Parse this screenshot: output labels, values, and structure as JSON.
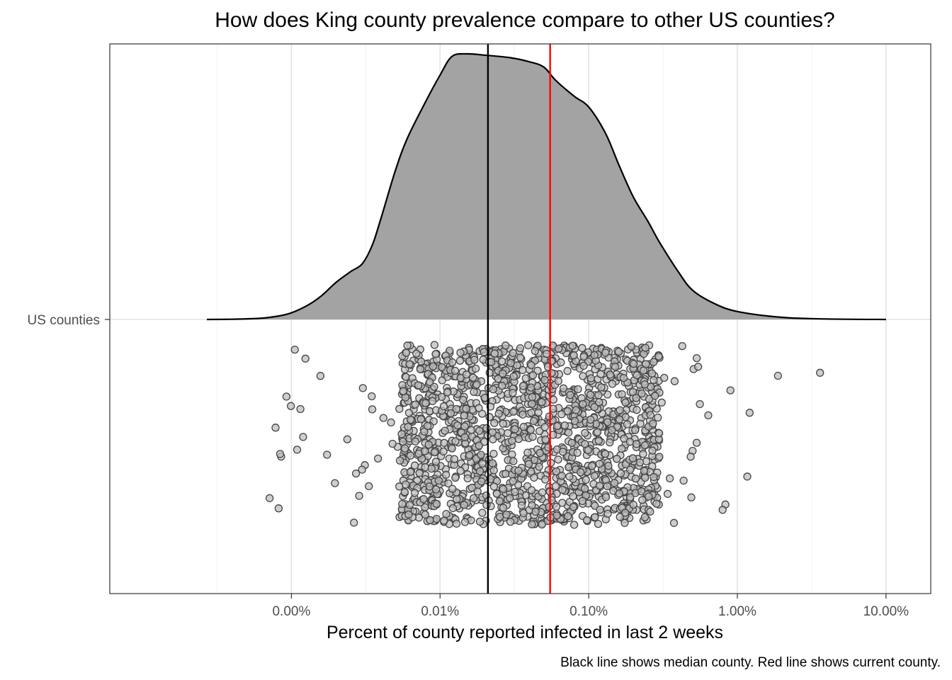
{
  "chart_data": {
    "type": "density_with_jitter",
    "title": "How does King county prevalence compare to other US counties?",
    "xlabel": "Percent of county reported infected in last 2 weeks",
    "ylabel": "",
    "caption": "Black line shows median county. Red line shows current county.",
    "x_scale": "log10",
    "x_ticks": [
      {
        "value": 0.001,
        "label": "0.00%"
      },
      {
        "value": 0.01,
        "label": "0.01%"
      },
      {
        "value": 0.1,
        "label": "0.10%"
      },
      {
        "value": 1,
        "label": "1.00%"
      },
      {
        "value": 10,
        "label": "10.00%"
      }
    ],
    "xlim": [
      6e-05,
      20
    ],
    "y_categories": [
      "US counties"
    ],
    "grid": true,
    "reference_lines": [
      {
        "name": "median county",
        "value": 0.021,
        "color": "#000000"
      },
      {
        "name": "current county",
        "value": 0.055,
        "color": "#ff0000"
      }
    ],
    "density": {
      "fill": "#a3a3a3",
      "points": [
        [
          0.00027,
          0.0
        ],
        [
          0.0004,
          0.0008
        ],
        [
          0.0006,
          0.004
        ],
        [
          0.0008,
          0.012
        ],
        [
          0.001,
          0.025
        ],
        [
          0.0013,
          0.055
        ],
        [
          0.0016,
          0.09
        ],
        [
          0.002,
          0.14
        ],
        [
          0.0025,
          0.18
        ],
        [
          0.003,
          0.21
        ],
        [
          0.0035,
          0.28
        ],
        [
          0.004,
          0.38
        ],
        [
          0.005,
          0.56
        ],
        [
          0.006,
          0.68
        ],
        [
          0.008,
          0.82
        ],
        [
          0.01,
          0.92
        ],
        [
          0.012,
          0.99
        ],
        [
          0.015,
          1.0
        ],
        [
          0.02,
          0.995
        ],
        [
          0.03,
          0.985
        ],
        [
          0.04,
          0.97
        ],
        [
          0.05,
          0.95
        ],
        [
          0.06,
          0.9
        ],
        [
          0.08,
          0.84
        ],
        [
          0.1,
          0.8
        ],
        [
          0.13,
          0.7
        ],
        [
          0.16,
          0.58
        ],
        [
          0.2,
          0.46
        ],
        [
          0.25,
          0.37
        ],
        [
          0.3,
          0.29
        ],
        [
          0.4,
          0.18
        ],
        [
          0.5,
          0.11
        ],
        [
          0.7,
          0.06
        ],
        [
          1.0,
          0.03
        ],
        [
          2.0,
          0.008
        ],
        [
          4.0,
          0.002
        ],
        [
          10.0,
          0.0
        ]
      ]
    },
    "jitter_points": {
      "count": 1600,
      "core_range": [
        0.0055,
        0.3
      ],
      "tail_range": [
        0.0007,
        6
      ],
      "fill": "#bdbdbd",
      "stroke": "#454545"
    }
  }
}
